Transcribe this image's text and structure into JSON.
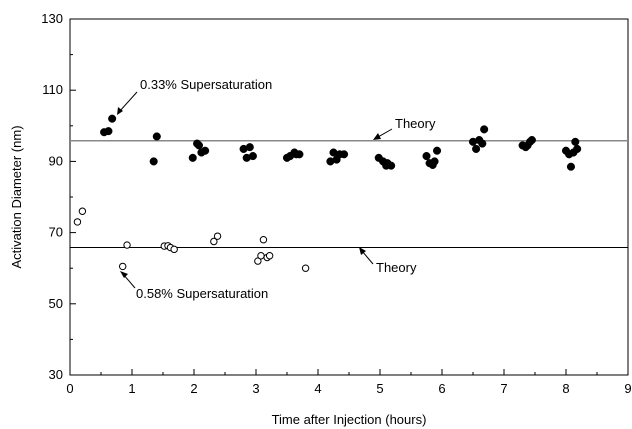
{
  "chart_data": {
    "type": "scatter",
    "title": "",
    "xlabel": "Time after Injection (hours)",
    "ylabel": "Activation Diameter (nm)",
    "xlim": [
      0,
      9
    ],
    "ylim": [
      30,
      130
    ],
    "x_ticks": [
      "0",
      "1",
      "2",
      "3",
      "4",
      "5",
      "6",
      "7",
      "8",
      "9"
    ],
    "y_ticks": [
      "30",
      "50",
      "70",
      "90",
      "110",
      "130"
    ],
    "grid": false,
    "series": [
      {
        "name": "0.33% Supersaturation",
        "marker": "filled-circle",
        "color": "#000000",
        "points": [
          [
            0.55,
            98.2
          ],
          [
            0.62,
            98.5
          ],
          [
            0.68,
            102.0
          ],
          [
            1.35,
            90.0
          ],
          [
            1.4,
            97.0
          ],
          [
            1.98,
            91.0
          ],
          [
            2.05,
            95.0
          ],
          [
            2.08,
            94.5
          ],
          [
            2.12,
            92.5
          ],
          [
            2.18,
            93.0
          ],
          [
            2.8,
            93.5
          ],
          [
            2.85,
            91.0
          ],
          [
            2.9,
            94.0
          ],
          [
            2.95,
            91.5
          ],
          [
            3.5,
            91.0
          ],
          [
            3.55,
            91.5
          ],
          [
            3.62,
            92.5
          ],
          [
            3.65,
            92.0
          ],
          [
            3.7,
            92.0
          ],
          [
            4.2,
            90.0
          ],
          [
            4.25,
            92.5
          ],
          [
            4.3,
            90.5
          ],
          [
            4.35,
            92.0
          ],
          [
            4.42,
            92.0
          ],
          [
            4.98,
            91.0
          ],
          [
            5.05,
            90.0
          ],
          [
            5.1,
            88.8
          ],
          [
            5.12,
            89.5
          ],
          [
            5.18,
            88.8
          ],
          [
            5.75,
            91.5
          ],
          [
            5.8,
            89.5
          ],
          [
            5.85,
            89.0
          ],
          [
            5.88,
            90.0
          ],
          [
            5.92,
            93.0
          ],
          [
            6.5,
            95.5
          ],
          [
            6.55,
            93.5
          ],
          [
            6.6,
            96.0
          ],
          [
            6.65,
            95.0
          ],
          [
            6.68,
            99.0
          ],
          [
            7.3,
            94.5
          ],
          [
            7.35,
            94.0
          ],
          [
            7.38,
            94.5
          ],
          [
            7.42,
            95.5
          ],
          [
            7.45,
            96.0
          ],
          [
            8.0,
            93.0
          ],
          [
            8.05,
            92.0
          ],
          [
            8.08,
            88.5
          ],
          [
            8.12,
            92.5
          ],
          [
            8.15,
            95.5
          ],
          [
            8.18,
            93.5
          ]
        ]
      },
      {
        "name": "0.58% Supersaturation",
        "marker": "open-circle",
        "color": "#000000",
        "points": [
          [
            0.12,
            73.0
          ],
          [
            0.2,
            76.0
          ],
          [
            0.85,
            60.5
          ],
          [
            0.92,
            66.5
          ],
          [
            1.52,
            66.2
          ],
          [
            1.58,
            66.3
          ],
          [
            1.62,
            65.8
          ],
          [
            1.68,
            65.3
          ],
          [
            2.32,
            67.5
          ],
          [
            2.38,
            69.0
          ],
          [
            3.03,
            62.0
          ],
          [
            3.08,
            63.5
          ],
          [
            3.12,
            68.0
          ],
          [
            3.18,
            63.0
          ],
          [
            3.22,
            63.5
          ],
          [
            3.8,
            60.0
          ]
        ]
      }
    ],
    "reference_lines": [
      {
        "label": "Theory",
        "y": 95.8,
        "color": "#888888"
      },
      {
        "label": "Theory",
        "y": 65.8,
        "color": "#000000"
      }
    ],
    "annotations": {
      "series_1_label": "0.33% Supersaturation",
      "series_2_label": "0.58% Supersaturation",
      "theory_upper": "Theory",
      "theory_lower": "Theory"
    }
  }
}
